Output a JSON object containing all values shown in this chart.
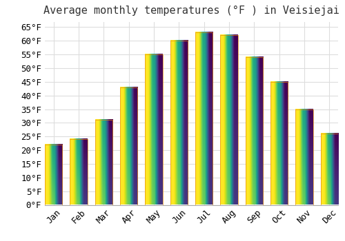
{
  "title": "Average monthly temperatures (°F ) in Veisiejai",
  "months": [
    "Jan",
    "Feb",
    "Mar",
    "Apr",
    "May",
    "Jun",
    "Jul",
    "Aug",
    "Sep",
    "Oct",
    "Nov",
    "Dec"
  ],
  "values": [
    22,
    24,
    31,
    43,
    55,
    60,
    63,
    62,
    54,
    45,
    35,
    26
  ],
  "bar_color_top": "#FFCC44",
  "bar_color_bottom": "#FFA020",
  "bar_edge_color": "#E89010",
  "background_color": "#FFFFFF",
  "grid_color": "#DDDDDD",
  "ylim": [
    0,
    67
  ],
  "yticks": [
    0,
    5,
    10,
    15,
    20,
    25,
    30,
    35,
    40,
    45,
    50,
    55,
    60,
    65
  ],
  "title_fontsize": 11,
  "tick_fontsize": 9,
  "tick_font": "monospace"
}
